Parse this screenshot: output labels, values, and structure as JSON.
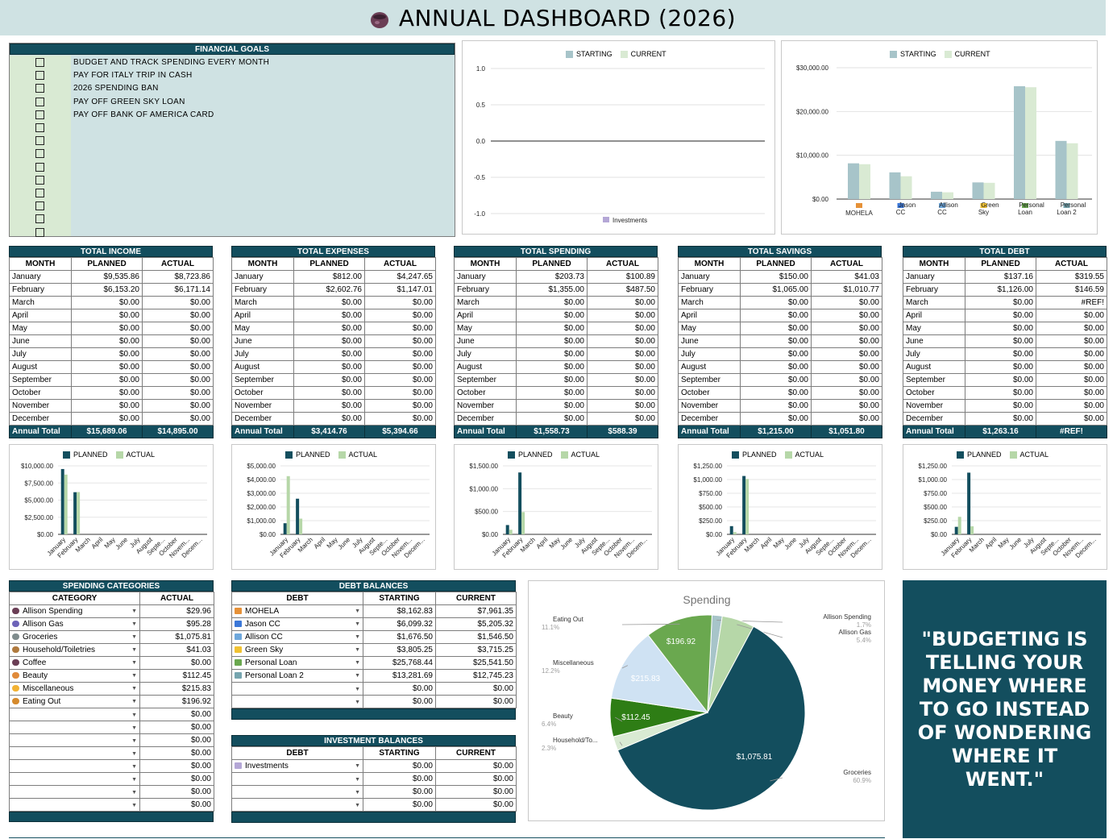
{
  "title": "ANNUAL DASHBOARD (2026)",
  "goals": {
    "header": "FINANCIAL GOALS",
    "items": [
      "BUDGET AND TRACK SPENDING EVERY MONTH",
      "PAY FOR ITALY TRIP IN CASH",
      "2026 SPENDING BAN",
      "PAY OFF GREEN SKY LOAN",
      "PAY OFF BANK OF AMERICA CARD"
    ]
  },
  "inv_chart": {
    "legend_starting": "STARTING",
    "legend_current": "CURRENT",
    "yticks": [
      "1.0",
      "0.5",
      "0.0",
      "-0.5",
      "-1.0"
    ],
    "category": "Investments"
  },
  "debt_chart": {
    "legend_starting": "STARTING",
    "legend_current": "CURRENT",
    "yticks": [
      "$30,000.00",
      "$20,000.00",
      "$10,000.00",
      "$0.00"
    ],
    "categories": [
      [
        "MOHELA"
      ],
      [
        "Jason",
        "CC"
      ],
      [
        "Allison",
        "CC"
      ],
      [
        "Green",
        "Sky"
      ],
      [
        "Personal",
        "Loan"
      ],
      [
        "Personal",
        "Loan 2"
      ]
    ]
  },
  "cols": {
    "month": "MONTH",
    "planned": "PLANNED",
    "actual": "ACTUAL",
    "annual": "Annual Total"
  },
  "tables": [
    {
      "header": "TOTAL INCOME",
      "rows": [
        [
          "January",
          "$9,535.86",
          "$8,723.86"
        ],
        [
          "February",
          "$6,153.20",
          "$6,171.14"
        ],
        [
          "March",
          "$0.00",
          "$0.00"
        ],
        [
          "April",
          "$0.00",
          "$0.00"
        ],
        [
          "May",
          "$0.00",
          "$0.00"
        ],
        [
          "June",
          "$0.00",
          "$0.00"
        ],
        [
          "July",
          "$0.00",
          "$0.00"
        ],
        [
          "August",
          "$0.00",
          "$0.00"
        ],
        [
          "September",
          "$0.00",
          "$0.00"
        ],
        [
          "October",
          "$0.00",
          "$0.00"
        ],
        [
          "November",
          "$0.00",
          "$0.00"
        ],
        [
          "December",
          "$0.00",
          "$0.00"
        ]
      ],
      "total": [
        "$15,689.06",
        "$14,895.00"
      ]
    },
    {
      "header": "TOTAL EXPENSES",
      "rows": [
        [
          "January",
          "$812.00",
          "$4,247.65"
        ],
        [
          "February",
          "$2,602.76",
          "$1,147.01"
        ],
        [
          "March",
          "$0.00",
          "$0.00"
        ],
        [
          "April",
          "$0.00",
          "$0.00"
        ],
        [
          "May",
          "$0.00",
          "$0.00"
        ],
        [
          "June",
          "$0.00",
          "$0.00"
        ],
        [
          "July",
          "$0.00",
          "$0.00"
        ],
        [
          "August",
          "$0.00",
          "$0.00"
        ],
        [
          "September",
          "$0.00",
          "$0.00"
        ],
        [
          "October",
          "$0.00",
          "$0.00"
        ],
        [
          "November",
          "$0.00",
          "$0.00"
        ],
        [
          "December",
          "$0.00",
          "$0.00"
        ]
      ],
      "total": [
        "$3,414.76",
        "$5,394.66"
      ]
    },
    {
      "header": "TOTAL SPENDING",
      "rows": [
        [
          "January",
          "$203.73",
          "$100.89"
        ],
        [
          "February",
          "$1,355.00",
          "$487.50"
        ],
        [
          "March",
          "$0.00",
          "$0.00"
        ],
        [
          "April",
          "$0.00",
          "$0.00"
        ],
        [
          "May",
          "$0.00",
          "$0.00"
        ],
        [
          "June",
          "$0.00",
          "$0.00"
        ],
        [
          "July",
          "$0.00",
          "$0.00"
        ],
        [
          "August",
          "$0.00",
          "$0.00"
        ],
        [
          "September",
          "$0.00",
          "$0.00"
        ],
        [
          "October",
          "$0.00",
          "$0.00"
        ],
        [
          "November",
          "$0.00",
          "$0.00"
        ],
        [
          "December",
          "$0.00",
          "$0.00"
        ]
      ],
      "total": [
        "$1,558.73",
        "$588.39"
      ]
    },
    {
      "header": "TOTAL SAVINGS",
      "rows": [
        [
          "January",
          "$150.00",
          "$41.03"
        ],
        [
          "February",
          "$1,065.00",
          "$1,010.77"
        ],
        [
          "March",
          "$0.00",
          "$0.00"
        ],
        [
          "April",
          "$0.00",
          "$0.00"
        ],
        [
          "May",
          "$0.00",
          "$0.00"
        ],
        [
          "June",
          "$0.00",
          "$0.00"
        ],
        [
          "July",
          "$0.00",
          "$0.00"
        ],
        [
          "August",
          "$0.00",
          "$0.00"
        ],
        [
          "September",
          "$0.00",
          "$0.00"
        ],
        [
          "October",
          "$0.00",
          "$0.00"
        ],
        [
          "November",
          "$0.00",
          "$0.00"
        ],
        [
          "December",
          "$0.00",
          "$0.00"
        ]
      ],
      "total": [
        "$1,215.00",
        "$1,051.80"
      ]
    },
    {
      "header": "TOTAL DEBT",
      "rows": [
        [
          "January",
          "$137.16",
          "$319.55"
        ],
        [
          "February",
          "$1,126.00",
          "$146.59"
        ],
        [
          "March",
          "$0.00",
          "#REF!"
        ],
        [
          "April",
          "$0.00",
          "$0.00"
        ],
        [
          "May",
          "$0.00",
          "$0.00"
        ],
        [
          "June",
          "$0.00",
          "$0.00"
        ],
        [
          "July",
          "$0.00",
          "$0.00"
        ],
        [
          "August",
          "$0.00",
          "$0.00"
        ],
        [
          "September",
          "$0.00",
          "$0.00"
        ],
        [
          "October",
          "$0.00",
          "$0.00"
        ],
        [
          "November",
          "$0.00",
          "$0.00"
        ],
        [
          "December",
          "$0.00",
          "$0.00"
        ]
      ],
      "total": [
        "$1,263.16",
        "#REF!"
      ]
    }
  ],
  "month_labels": [
    "January",
    "February",
    "March",
    "April",
    "May",
    "June",
    "July",
    "August",
    "Septe...",
    "October",
    "Novem...",
    "Decem..."
  ],
  "mini_charts": [
    {
      "legend_planned": "PLANNED",
      "legend_actual": "ACTUAL",
      "yticks": [
        "$10,000.00",
        "$7,500.00",
        "$5,000.00",
        "$2,500.00",
        "$0.00"
      ],
      "ymax": 10000,
      "planned": [
        9535.86,
        6153.2,
        0,
        0,
        0,
        0,
        0,
        0,
        0,
        0,
        0,
        0
      ],
      "actual": [
        8723.86,
        6171.14,
        0,
        0,
        0,
        0,
        0,
        0,
        0,
        0,
        0,
        0
      ]
    },
    {
      "legend_planned": "PLANNED",
      "legend_actual": "ACTUAL",
      "yticks": [
        "$5,000.00",
        "$4,000.00",
        "$3,000.00",
        "$2,000.00",
        "$1,000.00",
        "$0.00"
      ],
      "ymax": 5000,
      "planned": [
        812,
        2602.76,
        0,
        0,
        0,
        0,
        0,
        0,
        0,
        0,
        0,
        0
      ],
      "actual": [
        4247.65,
        1147.01,
        0,
        0,
        0,
        0,
        0,
        0,
        0,
        0,
        0,
        0
      ]
    },
    {
      "legend_planned": "PLANNED",
      "legend_actual": "ACTUAL",
      "yticks": [
        "$1,500.00",
        "$1,000.00",
        "$500.00",
        "$0.00"
      ],
      "ymax": 1500,
      "planned": [
        203.73,
        1355,
        0,
        0,
        0,
        0,
        0,
        0,
        0,
        0,
        0,
        0
      ],
      "actual": [
        100.89,
        487.5,
        0,
        0,
        0,
        0,
        0,
        0,
        0,
        0,
        0,
        0
      ]
    },
    {
      "legend_planned": "PLANNED",
      "legend_actual": "ACTUAL",
      "yticks": [
        "$1,250.00",
        "$1,000.00",
        "$750.00",
        "$500.00",
        "$250.00",
        "$0.00"
      ],
      "ymax": 1250,
      "planned": [
        150,
        1065,
        0,
        0,
        0,
        0,
        0,
        0,
        0,
        0,
        0,
        0
      ],
      "actual": [
        41.03,
        1010.77,
        0,
        0,
        0,
        0,
        0,
        0,
        0,
        0,
        0,
        0
      ]
    },
    {
      "legend_planned": "PLANNED",
      "legend_actual": "ACTUAL",
      "yticks": [
        "$1,250.00",
        "$1,000.00",
        "$750.00",
        "$500.00",
        "$250.00",
        "$0.00"
      ],
      "ymax": 1250,
      "planned": [
        137.16,
        1126,
        0,
        0,
        0,
        0,
        0,
        0,
        0,
        0,
        0,
        0
      ],
      "actual": [
        319.55,
        146.59,
        0,
        0,
        0,
        0,
        0,
        0,
        0,
        0,
        0,
        0
      ]
    }
  ],
  "categories": {
    "header": "SPENDING CATEGORIES",
    "col_category": "CATEGORY",
    "col_actual": "ACTUAL",
    "rows": [
      [
        "Allison Spending",
        "$29.96"
      ],
      [
        "Allison Gas",
        "$95.28"
      ],
      [
        "Groceries",
        "$1,075.81"
      ],
      [
        "Household/Toiletries",
        "$41.03"
      ],
      [
        "Coffee",
        "$0.00"
      ],
      [
        "Beauty",
        "$112.45"
      ],
      [
        "Miscellaneous",
        "$215.83"
      ],
      [
        "Eating Out",
        "$196.92"
      ],
      [
        "",
        "$0.00"
      ],
      [
        "",
        "$0.00"
      ],
      [
        "",
        "$0.00"
      ],
      [
        "",
        "$0.00"
      ],
      [
        "",
        "$0.00"
      ],
      [
        "",
        "$0.00"
      ],
      [
        "",
        "$0.00"
      ],
      [
        "",
        "$0.00"
      ]
    ]
  },
  "debts": {
    "header": "DEBT BALANCES",
    "col_debt": "DEBT",
    "col_starting": "STARTING",
    "col_current": "CURRENT",
    "rows": [
      [
        "MOHELA",
        "$8,162.83",
        "$7,961.35"
      ],
      [
        "Jason CC",
        "$6,099.32",
        "$5,205.32"
      ],
      [
        "Allison CC",
        "$1,676.50",
        "$1,546.50"
      ],
      [
        "Green Sky",
        "$3,805.25",
        "$3,715.25"
      ],
      [
        "Personal Loan",
        "$25,768.44",
        "$25,541.50"
      ],
      [
        "Personal Loan 2",
        "$13,281.69",
        "$12,745.23"
      ],
      [
        "",
        "$0.00",
        "$0.00"
      ],
      [
        "",
        "$0.00",
        "$0.00"
      ]
    ]
  },
  "investments": {
    "header": "INVESTMENT BALANCES",
    "col_debt": "DEBT",
    "col_starting": "STARTING",
    "col_current": "CURRENT",
    "rows": [
      [
        "Investments",
        "$0.00",
        "$0.00"
      ],
      [
        "",
        "$0.00",
        "$0.00"
      ],
      [
        "",
        "$0.00",
        "$0.00"
      ],
      [
        "",
        "$0.00",
        "$0.00"
      ]
    ]
  },
  "pie": {
    "title": "Spending",
    "slices": [
      {
        "label": "Allison Spending",
        "pct": "1.7%",
        "value": 29.96,
        "color": "#a7c4c9"
      },
      {
        "label": "Allison Gas",
        "pct": "5.4%",
        "value": 95.28,
        "color": "#b6d7a8"
      },
      {
        "label": "Groceries",
        "pct": "60.9%",
        "value": 1075.81,
        "color": "#134e5e",
        "data_label": "$1,075.81"
      },
      {
        "label": "Household/To...",
        "pct": "2.3%",
        "value": 41.03,
        "color": "#d9ead3"
      },
      {
        "label": "Beauty",
        "pct": "6.4%",
        "value": 112.45,
        "color": "#2e7d15",
        "data_label": "$112.45"
      },
      {
        "label": "Miscellaneous",
        "pct": "12.2%",
        "value": 215.83,
        "color": "#cfe2f3",
        "data_label": "$215.83"
      },
      {
        "label": "Eating Out",
        "pct": "11.1%",
        "value": 196.92,
        "color": "#6aa84f",
        "data_label": "$196.92"
      }
    ]
  },
  "quote": "\"BUDGETING IS TELLING YOUR MONEY WHERE TO GO INSTEAD OF WONDERING WHERE IT WENT.\"",
  "colors": {
    "dark": "#134e5e",
    "light_teal": "#cfe2e3",
    "planned": "#134e5e",
    "actual": "#b6d7a8",
    "starting": "#a7c4c9",
    "current": "#d9ead3"
  }
}
